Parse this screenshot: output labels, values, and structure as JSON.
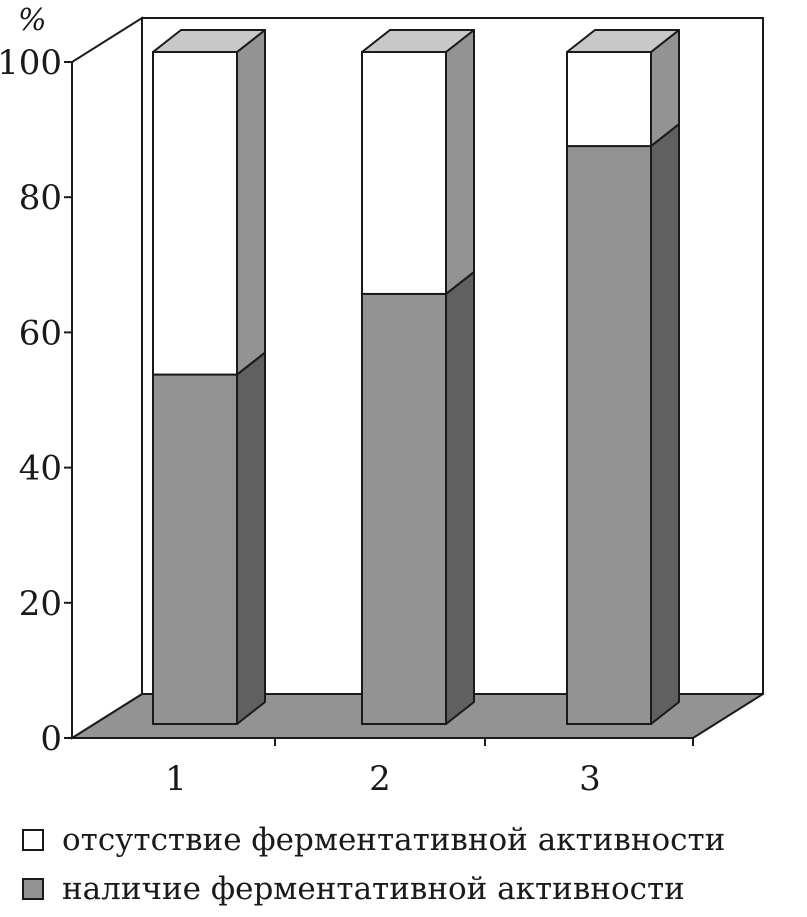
{
  "chart_data": {
    "type": "bar",
    "stacked": true,
    "three_d": true,
    "unit_label": "%",
    "categories": [
      "1",
      "2",
      "3"
    ],
    "ylim": [
      0,
      100
    ],
    "yticks": [
      "0",
      "20",
      "40",
      "60",
      "80",
      "100"
    ],
    "series": [
      {
        "name": "наличие ферментативной активности",
        "values": [
          52,
          64,
          86
        ],
        "color": "#939393",
        "side_color": "#606060"
      },
      {
        "name": "отсутствие ферментативной активности",
        "values": [
          48,
          36,
          14
        ],
        "color": "#ffffff",
        "side_color": "#939393"
      }
    ],
    "grid": false,
    "legend_position": "bottom"
  },
  "legend": {
    "items": [
      {
        "label": "отсутствие ферментативной активности",
        "color": "#ffffff"
      },
      {
        "label": "наличие ферментативной активности",
        "color": "#939393"
      }
    ]
  }
}
